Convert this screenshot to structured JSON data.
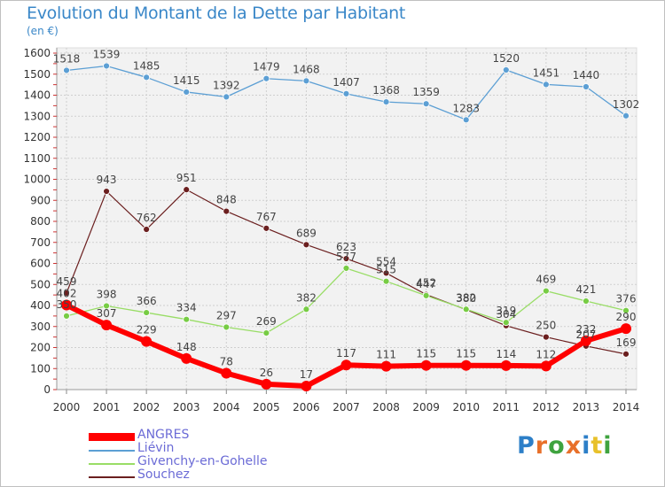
{
  "title": "Evolution du Montant de la Dette par Habitant",
  "subtitle": "(en €)",
  "logo": {
    "letters": [
      "P",
      "r",
      "o",
      "x",
      "i",
      "t",
      "i"
    ],
    "colors": [
      "#2d7fc8",
      "#e8702a",
      "#3fa33f",
      "#e8702a",
      "#2d7fc8",
      "#e8c12a",
      "#3fa33f"
    ]
  },
  "chart_data": {
    "type": "line",
    "categories": [
      "2000",
      "2001",
      "2002",
      "2003",
      "2004",
      "2005",
      "2006",
      "2007",
      "2008",
      "2009",
      "2010",
      "2011",
      "2012",
      "2013",
      "2014"
    ],
    "yticks": [
      "0",
      "100",
      "200",
      "300",
      "400",
      "500",
      "600",
      "700",
      "800",
      "900",
      "1000",
      "1100",
      "1200",
      "1300",
      "1400",
      "1500",
      "1600"
    ],
    "ylim": [
      0,
      1600
    ],
    "grid": true,
    "legend_position": "bottom-left",
    "series": [
      {
        "name": "Souchez",
        "color": "#6b1f1f",
        "width": 1.2,
        "marker_fill": "#6b1f1f",
        "marker_r": 3.5,
        "values": [
          459,
          943,
          762,
          951,
          848,
          767,
          689,
          623,
          554,
          452,
          380,
          304,
          250,
          207,
          169
        ],
        "labels": [
          "459",
          "943",
          "762",
          "951",
          "848",
          "767",
          "689",
          "623",
          "554",
          "452",
          "380",
          "304",
          "250",
          "207",
          "169"
        ]
      },
      {
        "name": "Givenchy-en-Gohelle",
        "color": "#99dd66",
        "width": 1.3,
        "marker_fill": "#77cc44",
        "marker_r": 3.5,
        "values": [
          350,
          398,
          366,
          334,
          297,
          269,
          382,
          577,
          515,
          447,
          382,
          319,
          469,
          421,
          376
        ],
        "labels": [
          "350",
          "398",
          "366",
          "334",
          "297",
          "269",
          "382",
          "577",
          "515",
          "447",
          "382",
          "319",
          "469",
          "421",
          "376"
        ]
      },
      {
        "name": "Liévin",
        "color": "#5c9fd4",
        "width": 1.3,
        "marker_fill": "#5c9fd4",
        "marker_r": 3.5,
        "values": [
          1518,
          1539,
          1485,
          1415,
          1392,
          1479,
          1468,
          1407,
          1368,
          1359,
          1283,
          1520,
          1451,
          1440,
          1302
        ],
        "labels": [
          "1518",
          "1539",
          "1485",
          "1415",
          "1392",
          "1479",
          "1468",
          "1407",
          "1368",
          "1359",
          "1283",
          "1520",
          "1451",
          "1440",
          "1302"
        ]
      },
      {
        "name": "ANGRES",
        "color": "#ff0000",
        "width": 6,
        "marker_fill": "#ff0000",
        "marker_r": 6,
        "values": [
          402,
          307,
          229,
          148,
          78,
          26,
          17,
          117,
          111,
          115,
          115,
          114,
          112,
          232,
          290
        ],
        "labels": [
          "402",
          "307",
          "229",
          "148",
          "78",
          "26",
          "17",
          "117",
          "111",
          "115",
          "115",
          "114",
          "112",
          "232",
          "290"
        ]
      }
    ]
  }
}
